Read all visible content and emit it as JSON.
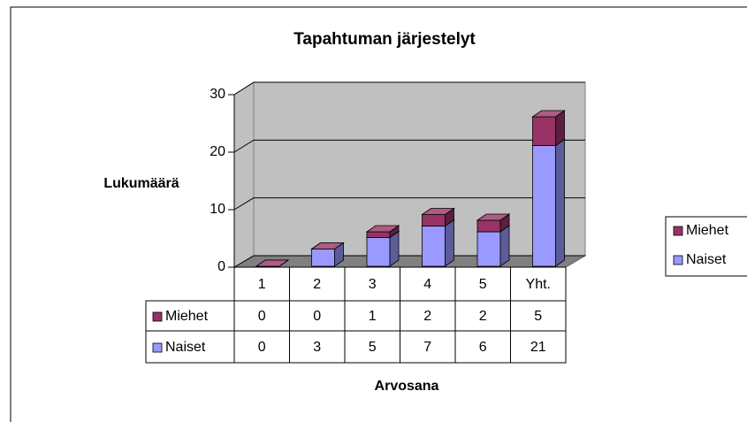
{
  "chart_data": {
    "type": "bar3d_stacked",
    "title": "Tapahtuman järjestelyt",
    "y_label": "Lukumäärä",
    "x_label": "Arvosana",
    "categories": [
      "1",
      "2",
      "3",
      "4",
      "5",
      "Yht."
    ],
    "series": [
      {
        "name": "Miehet",
        "color": "#993366",
        "values": [
          0,
          0,
          1,
          2,
          2,
          5
        ]
      },
      {
        "name": "Naiset",
        "color": "#9999ff",
        "values": [
          0,
          3,
          5,
          7,
          6,
          21
        ]
      }
    ],
    "ylim": [
      0,
      30
    ],
    "yticks": [
      0,
      10,
      20,
      30
    ],
    "grid": true,
    "legend": "right",
    "data_table": true
  }
}
